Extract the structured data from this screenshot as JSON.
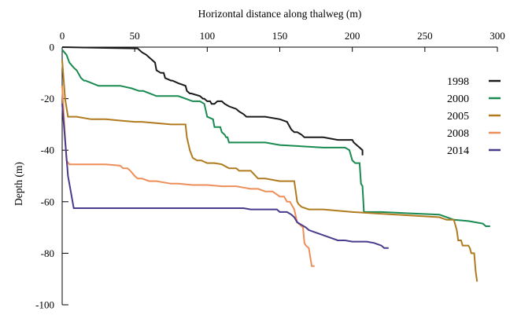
{
  "chart_data": {
    "type": "line",
    "title": "",
    "xlabel": "Horizontal distance along thalweg (m)",
    "ylabel": "Depth (m)",
    "x_axis_position": "top",
    "xlim": [
      0,
      300
    ],
    "ylim": [
      -100,
      0
    ],
    "xticks": [
      0,
      50,
      100,
      150,
      200,
      250,
      300
    ],
    "yticks": [
      0,
      -20,
      -40,
      -60,
      -80,
      -100
    ],
    "grid": false,
    "legend_position": "right",
    "series": [
      {
        "name": "1998",
        "color": "#1a1a1a",
        "x": [
          0,
          50,
          52,
          55,
          58,
          60,
          62,
          64,
          65,
          68,
          70,
          71,
          75,
          76,
          80,
          85,
          86,
          88,
          89,
          95,
          97,
          98,
          100,
          102,
          103,
          105,
          107,
          110,
          112,
          115,
          120,
          122,
          125,
          127,
          130,
          140,
          150,
          155,
          157,
          158,
          160,
          162,
          165,
          167,
          180,
          190,
          200,
          201,
          203,
          205,
          207,
          207
        ],
        "y": [
          0,
          -0.5,
          -0.5,
          -2,
          -3,
          -4,
          -5,
          -6,
          -9,
          -10,
          -10,
          -12,
          -13,
          -13,
          -14,
          -15,
          -17,
          -18,
          -18,
          -19,
          -20,
          -20,
          -21,
          -21,
          -22,
          -22,
          -21,
          -21,
          -22,
          -23,
          -24,
          -25,
          -26,
          -27,
          -27,
          -27,
          -28,
          -29,
          -31,
          -32,
          -33,
          -33,
          -34,
          -35,
          -35,
          -36,
          -36,
          -37,
          -38,
          -39,
          -40,
          -42
        ]
      },
      {
        "name": "2000",
        "color": "#198a50",
        "x": [
          0,
          3,
          5,
          8,
          10,
          13,
          15,
          16,
          25,
          30,
          40,
          48,
          53,
          56,
          65,
          75,
          80,
          85,
          90,
          92,
          95,
          98,
          100,
          104,
          105,
          109,
          110,
          112,
          113,
          114,
          115,
          140,
          150,
          180,
          195,
          198,
          200,
          202,
          205,
          206,
          207,
          208,
          210,
          220,
          240,
          260,
          265,
          270,
          280,
          285,
          290,
          292,
          295
        ],
        "y": [
          -1,
          -3,
          -6,
          -8,
          -9,
          -12,
          -13,
          -13,
          -15,
          -15,
          -15,
          -16,
          -17,
          -17,
          -19,
          -19,
          -19,
          -20,
          -21,
          -21,
          -21,
          -22,
          -27,
          -28,
          -31,
          -31,
          -33,
          -34,
          -35,
          -35,
          -37,
          -37,
          -38,
          -39,
          -39,
          -40,
          -44,
          -45,
          -45,
          -53,
          -54,
          -64,
          -64,
          -64,
          -64.5,
          -65,
          -66,
          -67,
          -67.5,
          -68,
          -68.5,
          -69.5,
          -69.5
        ]
      },
      {
        "name": "2005",
        "color": "#b07a1e",
        "x": [
          0,
          2,
          4,
          10,
          20,
          30,
          40,
          50,
          55,
          65,
          75,
          85,
          86,
          88,
          90,
          93,
          96,
          98,
          100,
          105,
          110,
          115,
          120,
          122,
          125,
          130,
          135,
          140,
          150,
          155,
          160,
          162,
          163,
          165,
          170,
          180,
          200,
          230,
          260,
          265,
          270,
          272,
          273,
          275,
          276,
          280,
          281,
          282,
          284,
          285,
          286
        ],
        "y": [
          -5,
          -20,
          -27,
          -27,
          -28,
          -28,
          -28.5,
          -29,
          -29,
          -29.5,
          -30,
          -30,
          -35,
          -40,
          -43,
          -44,
          -44,
          -44.5,
          -45,
          -45,
          -45.5,
          -47,
          -47,
          -48,
          -48,
          -48,
          -51,
          -51,
          -52,
          -52,
          -52,
          -60,
          -61,
          -62,
          -63,
          -63,
          -64,
          -65,
          -66,
          -67,
          -67,
          -71,
          -75,
          -75,
          -77,
          -77,
          -78,
          -80,
          -80,
          -87,
          -91
        ]
      },
      {
        "name": "2008",
        "color": "#ee8e58",
        "x": [
          0,
          1,
          2,
          3,
          5,
          10,
          20,
          30,
          40,
          42,
          45,
          47,
          50,
          52,
          55,
          60,
          65,
          70,
          75,
          80,
          90,
          100,
          110,
          120,
          125,
          130,
          135,
          140,
          145,
          150,
          153,
          155,
          157,
          159,
          160,
          162,
          164,
          166,
          167,
          168,
          170,
          172,
          174
        ],
        "y": [
          -15,
          -25,
          -35,
          -44,
          -45.5,
          -45.5,
          -45.5,
          -45.5,
          -46,
          -47,
          -47,
          -48,
          -50,
          -51,
          -51,
          -52,
          -52,
          -52.5,
          -53,
          -53,
          -53.5,
          -53.5,
          -54,
          -54,
          -54.5,
          -55,
          -55,
          -56,
          -56,
          -58,
          -58,
          -60,
          -60,
          -62,
          -63,
          -68,
          -69,
          -70,
          -76,
          -77,
          -78,
          -85,
          -85
        ]
      },
      {
        "name": "2014",
        "color": "#4a3a8c",
        "x": [
          0,
          4,
          8,
          10,
          20,
          50,
          100,
          120,
          125,
          130,
          140,
          148,
          150,
          152,
          155,
          158,
          160,
          162,
          165,
          168,
          170,
          175,
          180,
          185,
          190,
          195,
          200,
          210,
          215,
          220,
          222,
          225
        ],
        "y": [
          -22,
          -50,
          -62.5,
          -62.5,
          -62.5,
          -62.5,
          -62.5,
          -62.5,
          -62.5,
          -63,
          -63,
          -63,
          -64,
          -64,
          -64,
          -65,
          -66,
          -68,
          -69,
          -70,
          -71,
          -72,
          -73,
          -74,
          -75,
          -75,
          -75.5,
          -75.5,
          -76,
          -77,
          -78,
          -78
        ]
      }
    ]
  }
}
